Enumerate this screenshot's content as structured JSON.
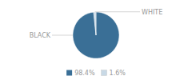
{
  "chart_data": {
    "type": "pie",
    "categories": [
      "BLACK",
      "WHITE"
    ],
    "values": [
      98.4,
      1.6
    ],
    "value_labels": [
      "98.4%",
      "1.6%"
    ],
    "colors": [
      "#3a6f96",
      "#c8d9e6"
    ],
    "legend": "bottom"
  }
}
